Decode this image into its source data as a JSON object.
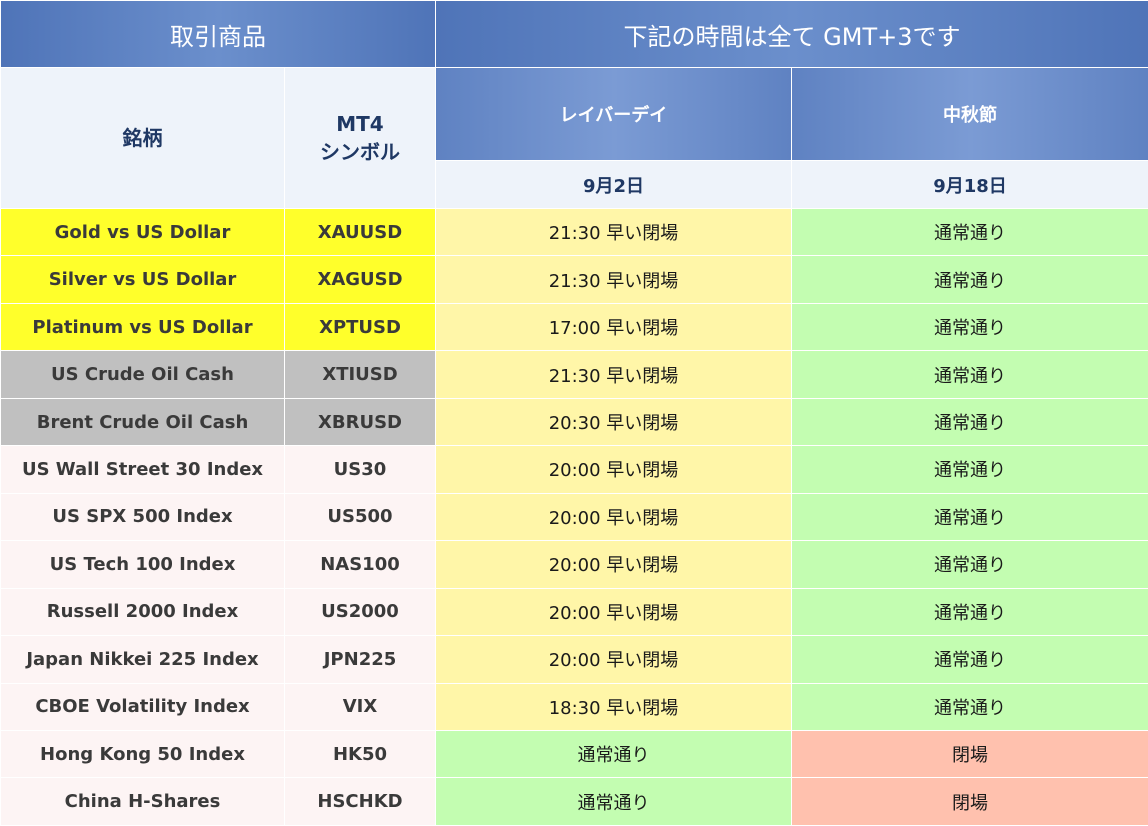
{
  "header": {
    "left_title": "取引商品",
    "right_title": "下記の時間は全て GMT+3です"
  },
  "columns": {
    "name": "銘柄",
    "symbol_line1": "MT4",
    "symbol_line2": "シンボル"
  },
  "holidays": [
    {
      "name": "レイバーデイ",
      "date": "9月2日"
    },
    {
      "name": "中秋節",
      "date": "9月18日"
    }
  ],
  "colors": {
    "header_blue": "#4f74b8",
    "metal_yellow": "#ffff2b",
    "oil_gray": "#c0c0c0",
    "index_pink": "#fdf4f4",
    "early_close_yellow": "#fff6a8",
    "normal_green": "#c3fdb1",
    "closed_salmon": "#ffc1ae"
  },
  "rows": [
    {
      "name": "Gold vs US Dollar",
      "symbol": "XAUUSD",
      "category": "metal",
      "day1": "21:30 早い閉場",
      "day1_status": "early",
      "day2": "通常通り",
      "day2_status": "normal"
    },
    {
      "name": "Silver vs US Dollar",
      "symbol": "XAGUSD",
      "category": "metal",
      "day1": "21:30 早い閉場",
      "day1_status": "early",
      "day2": "通常通り",
      "day2_status": "normal"
    },
    {
      "name": "Platinum vs US Dollar",
      "symbol": "XPTUSD",
      "category": "metal",
      "day1": "17:00 早い閉場",
      "day1_status": "early",
      "day2": "通常通り",
      "day2_status": "normal"
    },
    {
      "name": "US Crude Oil Cash",
      "symbol": "XTIUSD",
      "category": "oil",
      "day1": "21:30 早い閉場",
      "day1_status": "early",
      "day2": "通常通り",
      "day2_status": "normal"
    },
    {
      "name": "Brent Crude Oil Cash",
      "symbol": "XBRUSD",
      "category": "oil",
      "day1": "20:30 早い閉場",
      "day1_status": "early",
      "day2": "通常通り",
      "day2_status": "normal"
    },
    {
      "name": "US Wall Street 30 Index",
      "symbol": "US30",
      "category": "index",
      "day1": "20:00 早い閉場",
      "day1_status": "early",
      "day2": "通常通り",
      "day2_status": "normal"
    },
    {
      "name": "US SPX 500 Index",
      "symbol": "US500",
      "category": "index",
      "day1": "20:00 早い閉場",
      "day1_status": "early",
      "day2": "通常通り",
      "day2_status": "normal"
    },
    {
      "name": "US Tech 100 Index",
      "symbol": "NAS100",
      "category": "index",
      "day1": "20:00 早い閉場",
      "day1_status": "early",
      "day2": "通常通り",
      "day2_status": "normal"
    },
    {
      "name": "Russell 2000 Index",
      "symbol": "US2000",
      "category": "index",
      "day1": "20:00 早い閉場",
      "day1_status": "early",
      "day2": "通常通り",
      "day2_status": "normal"
    },
    {
      "name": "Japan Nikkei 225 Index",
      "symbol": "JPN225",
      "category": "index",
      "day1": "20:00 早い閉場",
      "day1_status": "early",
      "day2": "通常通り",
      "day2_status": "normal"
    },
    {
      "name": "CBOE Volatility Index",
      "symbol": "VIX",
      "category": "index",
      "day1": "18:30 早い閉場",
      "day1_status": "early",
      "day2": "通常通り",
      "day2_status": "normal"
    },
    {
      "name": "Hong Kong 50 Index",
      "symbol": "HK50",
      "category": "index",
      "day1": "通常通り",
      "day1_status": "normal",
      "day2": "閉場",
      "day2_status": "closed"
    },
    {
      "name": "China H-Shares",
      "symbol": "HSCHKD",
      "category": "index",
      "day1": "通常通り",
      "day1_status": "normal",
      "day2": "閉場",
      "day2_status": "closed"
    }
  ]
}
